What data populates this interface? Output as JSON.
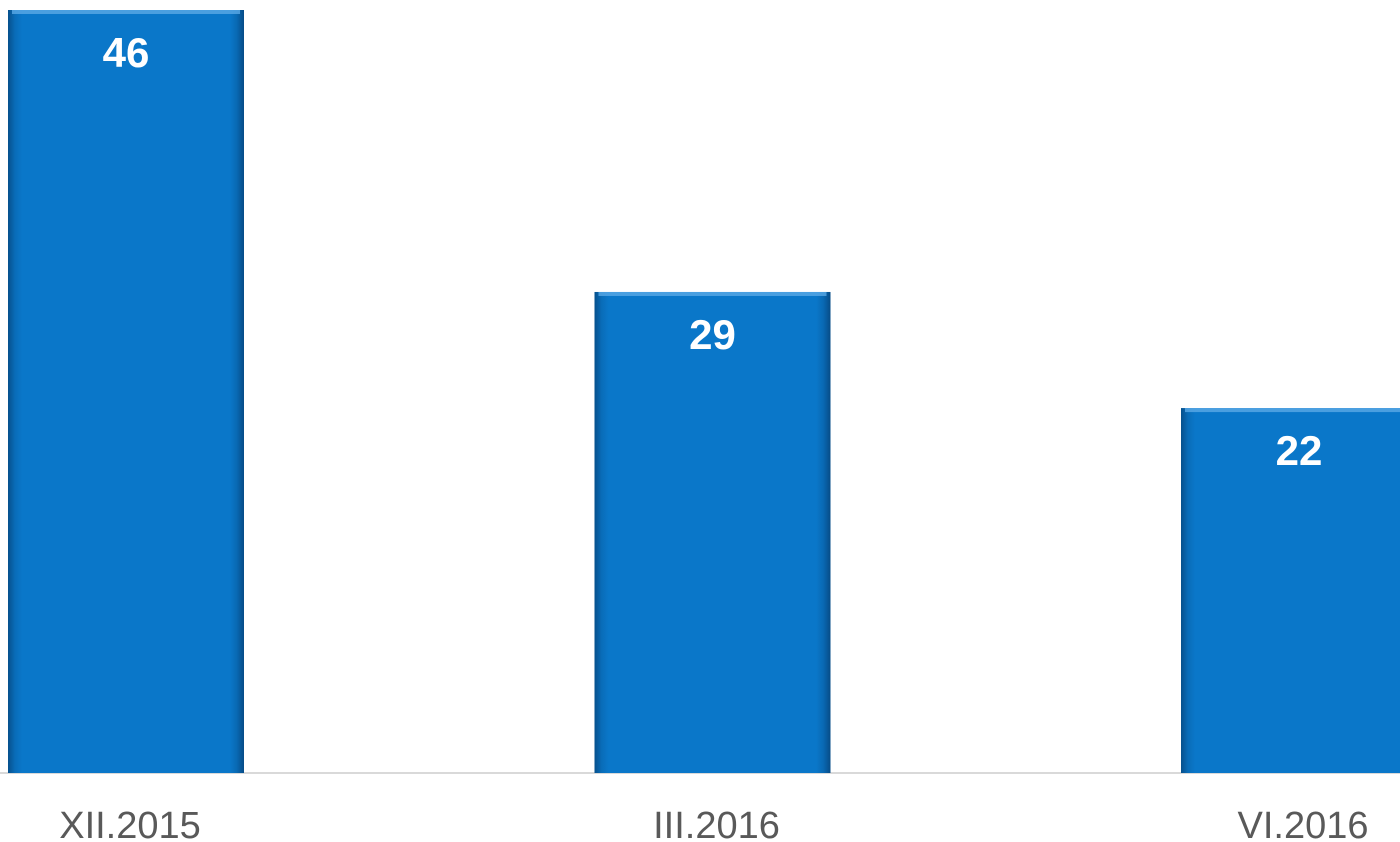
{
  "chart_data": {
    "type": "bar",
    "categories": [
      "XII.2015",
      "III.2016",
      "VI.2016"
    ],
    "values": [
      46,
      29,
      22
    ],
    "color": "#0a77c9"
  }
}
